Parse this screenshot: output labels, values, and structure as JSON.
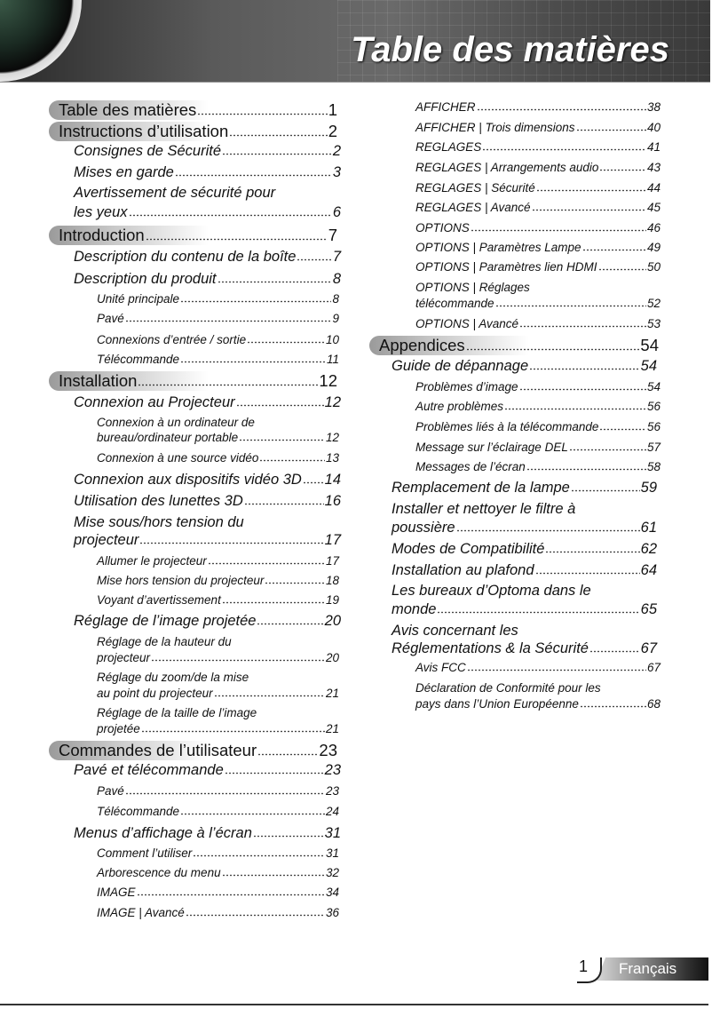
{
  "header": {
    "title": "Table des matières"
  },
  "footer": {
    "page_number": "1",
    "language": "Français"
  },
  "toc": {
    "left": [
      {
        "level": 1,
        "title": "Table des matières",
        "page": "1"
      },
      {
        "level": 1,
        "title": "Instructions d’utilisation",
        "page": "2"
      },
      {
        "level": 2,
        "title": "Consignes de Sécurité",
        "page": "2"
      },
      {
        "level": 2,
        "title": "Mises en garde",
        "page": "3"
      },
      {
        "level": 2,
        "title": "Avertissement de sécurité pour",
        "title2": "les yeux",
        "page": "6"
      },
      {
        "level": 1,
        "title": "Introduction",
        "page": "7"
      },
      {
        "level": 2,
        "title": "Description du contenu de la boîte",
        "page": "7"
      },
      {
        "level": 2,
        "title": "Description du produit",
        "page": "8"
      },
      {
        "level": 3,
        "title": "Unité principale",
        "page": "8"
      },
      {
        "level": 3,
        "title": "Pavé",
        "page": "9"
      },
      {
        "level": 3,
        "title": "Connexions d’entrée / sortie",
        "page": "10"
      },
      {
        "level": 3,
        "title": "Télécommande",
        "page": "11"
      },
      {
        "level": 1,
        "title": "Installation",
        "page": "12"
      },
      {
        "level": 2,
        "title": "Connexion au Projecteur",
        "page": "12"
      },
      {
        "level": 3,
        "title": "Connexion à un ordinateur de",
        "title2": "bureau/ordinateur portable",
        "page": "12"
      },
      {
        "level": 3,
        "title": "Connexion à une source vidéo",
        "page": "13"
      },
      {
        "level": 2,
        "title": "Connexion aux dispositifs vidéo 3D",
        "page": "14"
      },
      {
        "level": 2,
        "title": "Utilisation des lunettes 3D",
        "page": "16"
      },
      {
        "level": 2,
        "title": "Mise sous/hors tension du",
        "title2": "projecteur",
        "page": "17"
      },
      {
        "level": 3,
        "title": "Allumer le projecteur",
        "page": "17"
      },
      {
        "level": 3,
        "title": "Mise hors tension du projecteur",
        "page": "18"
      },
      {
        "level": 3,
        "title": "Voyant d’avertissement",
        "page": "19"
      },
      {
        "level": 2,
        "title": "Réglage de l’image projetée",
        "page": "20"
      },
      {
        "level": 3,
        "title": "Réglage de la hauteur du",
        "title2": "projecteur",
        "page": "20"
      },
      {
        "level": 3,
        "title": "Réglage du zoom/de la mise",
        "title2": "au point du projecteur",
        "page": "21"
      },
      {
        "level": 3,
        "title": "Réglage de la taille de l’image",
        "title2": "projetée",
        "page": "21"
      },
      {
        "level": 1,
        "title": "Commandes de l’utilisateur",
        "page": "23"
      },
      {
        "level": 2,
        "title": "Pavé et télécommande",
        "page": "23"
      },
      {
        "level": 3,
        "title": "Pavé",
        "page": "23"
      },
      {
        "level": 3,
        "title": "Télécommande",
        "page": "24"
      },
      {
        "level": 2,
        "title": "Menus d’affichage à l’écran",
        "page": "31"
      },
      {
        "level": 3,
        "title": "Comment l’utiliser",
        "page": "31"
      },
      {
        "level": 3,
        "title": "Arborescence du menu",
        "page": "32"
      },
      {
        "level": 3,
        "title": "IMAGE",
        "page": "34"
      },
      {
        "level": 3,
        "title": "IMAGE | Avancé",
        "page": "36"
      }
    ],
    "right": [
      {
        "level": 3,
        "title": "AFFICHER",
        "page": "38"
      },
      {
        "level": 3,
        "title": "AFFICHER | Trois dimensions",
        "page": "40"
      },
      {
        "level": 3,
        "title": "REGLAGES",
        "page": "41"
      },
      {
        "level": 3,
        "title": "REGLAGES | Arrangements audio",
        "page": "43"
      },
      {
        "level": 3,
        "title": "REGLAGES | Sécurité",
        "page": "44"
      },
      {
        "level": 3,
        "title": "REGLAGES | Avancé",
        "page": "45"
      },
      {
        "level": 3,
        "title": "OPTIONS",
        "page": "46"
      },
      {
        "level": 3,
        "title": "OPTIONS | Paramètres Lampe",
        "page": "49"
      },
      {
        "level": 3,
        "title": "OPTIONS | Paramètres lien HDMI",
        "page": "50"
      },
      {
        "level": 3,
        "title": "OPTIONS | Réglages",
        "title2": "télécommande",
        "page": "52"
      },
      {
        "level": 3,
        "title": "OPTIONS | Avancé",
        "page": "53"
      },
      {
        "level": 1,
        "title": "Appendices",
        "page": "54"
      },
      {
        "level": 2,
        "title": "Guide de dépannage",
        "page": "54"
      },
      {
        "level": 3,
        "title": "Problèmes d’image",
        "page": "54"
      },
      {
        "level": 3,
        "title": "Autre problèmes",
        "page": "56"
      },
      {
        "level": 3,
        "title": "Problèmes liés à la télécommande",
        "page": "56"
      },
      {
        "level": 3,
        "title": "Message sur l’éclairage DEL",
        "page": "57"
      },
      {
        "level": 3,
        "title": "Messages de l’écran",
        "page": "58"
      },
      {
        "level": 2,
        "title": "Remplacement de la lampe",
        "page": "59"
      },
      {
        "level": 2,
        "title": "Installer et nettoyer le filtre à",
        "title2": "poussière",
        "page": "61"
      },
      {
        "level": 2,
        "title": "Modes de Compatibilité",
        "page": "62"
      },
      {
        "level": 2,
        "title": "Installation au plafond",
        "page": "64"
      },
      {
        "level": 2,
        "title": "Les bureaux d’Optoma dans le",
        "title2": "monde",
        "page": "65"
      },
      {
        "level": 2,
        "title": "Avis concernant les",
        "title2": "Réglementations & la Sécurité",
        "page": "67"
      },
      {
        "level": 3,
        "title": "Avis FCC",
        "page": "67"
      },
      {
        "level": 3,
        "title": "Déclaration de Conformité pour les",
        "title2": "pays dans l’Union Européenne",
        "page": "68"
      }
    ]
  }
}
